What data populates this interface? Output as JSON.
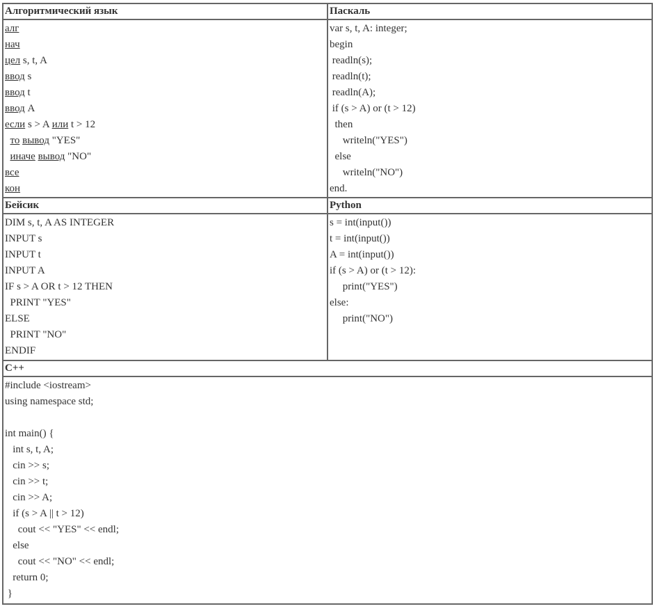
{
  "headers": {
    "alg": "Алгоритмический язык",
    "pascal": "Паскаль",
    "basic": "Бейсик",
    "python": "Python",
    "cpp": "C++"
  },
  "code": {
    "alg": [
      [
        {
          "t": "алг",
          "u": true
        }
      ],
      [
        {
          "t": "нач",
          "u": true
        }
      ],
      [
        {
          "t": "цел",
          "u": true
        },
        {
          "t": " s, t, A"
        }
      ],
      [
        {
          "t": "ввод",
          "u": true
        },
        {
          "t": " s"
        }
      ],
      [
        {
          "t": "ввод",
          "u": true
        },
        {
          "t": " t"
        }
      ],
      [
        {
          "t": "ввод",
          "u": true
        },
        {
          "t": " A"
        }
      ],
      [
        {
          "t": "если",
          "u": true
        },
        {
          "t": " s > A "
        },
        {
          "t": "или",
          "u": true
        },
        {
          "t": " t > 12"
        }
      ],
      [
        {
          "t": "  "
        },
        {
          "t": "то",
          "u": true
        },
        {
          "t": " "
        },
        {
          "t": "вывод",
          "u": true
        },
        {
          "t": " \"YES\""
        }
      ],
      [
        {
          "t": "  "
        },
        {
          "t": "иначе",
          "u": true
        },
        {
          "t": " "
        },
        {
          "t": "вывод",
          "u": true
        },
        {
          "t": " \"NO\""
        }
      ],
      [
        {
          "t": "все",
          "u": true
        }
      ],
      [
        {
          "t": "кон",
          "u": true
        }
      ]
    ],
    "pascal": [
      "var s, t, A: integer;",
      "begin",
      " readln(s);",
      " readln(t);",
      " readln(A);",
      " if (s > A) or (t > 12)",
      "  then",
      "     writeln(\"YES\")",
      "  else",
      "     writeln(\"NO\")",
      "end."
    ],
    "basic": [
      "DIM s, t, A AS INTEGER",
      "INPUT s",
      "INPUT t",
      "INPUT A",
      "IF s > A OR t > 12 THEN",
      "  PRINT \"YES\"",
      "ELSE",
      "  PRINT \"NO\"",
      "ENDIF"
    ],
    "python": [
      "s = int(input())",
      "t = int(input())",
      "A = int(input())",
      "if (s > A) or (t > 12):",
      "     print(\"YES\")",
      "else:",
      "     print(\"NO\")"
    ],
    "cpp": [
      "#include <iostream>",
      "using namespace std;",
      "",
      "int main() {",
      "   int s, t, A;",
      "   cin >> s;",
      "   cin >> t;",
      "   cin >> A;",
      "   if (s > A || t > 12)",
      "     cout << \"YES\" << endl;",
      "   else",
      "     cout << \"NO\" << endl;",
      "   return 0;",
      " }"
    ]
  }
}
